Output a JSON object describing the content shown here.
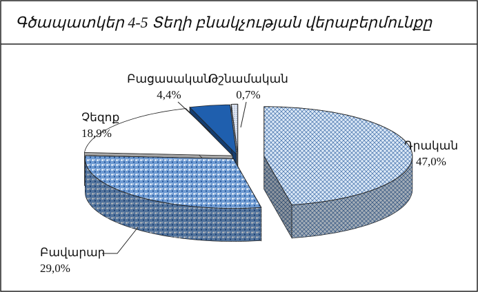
{
  "chart_data": {
    "type": "pie",
    "title": "Գծապատկեր 4-5 Տեղի բնակչության վերաբերմունքը",
    "categories": [
      "Դրական",
      "Բավարար",
      "Չեզոք",
      "Բացասական",
      "Թշնամական"
    ],
    "values": [
      47.0,
      29.0,
      18.9,
      4.4,
      0.7
    ],
    "value_labels": [
      "47,0%",
      "29,0%",
      "18,9%",
      "4,4%",
      "0,7%"
    ],
    "colors": [
      "#dbe8f6",
      "#6f9bd2",
      "#ffffff",
      "#1f5fae",
      "#e4eaf4"
    ]
  }
}
